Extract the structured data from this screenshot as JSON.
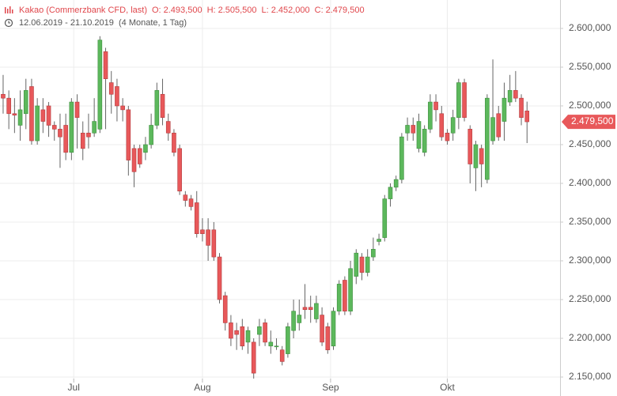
{
  "chart_data": {
    "type": "candlestick",
    "title": "Kakao (Commerzbank CFD, last)",
    "ohlc_header": [
      {
        "key": "O:",
        "value": "2.493,500"
      },
      {
        "key": "H:",
        "value": "2.505,500"
      },
      {
        "key": "L:",
        "value": "2.452,000"
      },
      {
        "key": "C:",
        "value": "2.479,500"
      }
    ],
    "date_range": "12.06.2019 - 21.10.2019",
    "period": "(4 Monate, 1 Tag)",
    "up_color": "#5cb85c",
    "down_color": "#e8585a",
    "open": [
      2.515,
      2.51,
      2.49,
      2.475,
      2.49,
      2.525,
      2.455,
      2.495,
      2.5,
      2.475,
      2.47,
      2.475,
      2.44,
      2.505,
      2.465,
      2.465,
      2.465,
      2.47,
      2.57,
      2.53,
      2.525,
      2.5,
      2.495,
      2.445,
      2.445,
      2.44,
      2.45,
      2.475,
      2.515,
      2.48,
      2.465,
      2.445,
      2.385,
      2.38,
      2.375,
      2.34,
      2.34,
      2.34,
      2.305,
      2.255,
      2.22,
      2.21,
      2.215,
      2.195,
      2.195,
      2.205,
      2.22,
      2.19,
      2.19,
      2.185,
      2.18,
      2.21,
      2.22,
      2.24,
      2.24,
      2.225,
      2.23,
      2.215,
      2.19,
      2.235,
      2.275,
      2.235,
      2.28,
      2.305,
      2.285,
      2.305,
      2.325,
      2.33,
      2.38,
      2.395,
      2.405,
      2.465,
      2.475,
      2.445,
      2.44,
      2.47,
      2.505,
      2.49,
      2.465,
      2.465,
      2.485,
      2.53,
      2.47,
      2.42,
      2.445,
      2.405,
      2.455,
      2.49,
      2.48,
      2.505,
      2.52,
      2.51,
      2.4935
    ],
    "high": [
      2.54,
      2.52,
      2.51,
      2.52,
      2.535,
      2.535,
      2.51,
      2.51,
      2.505,
      2.48,
      2.49,
      2.49,
      2.51,
      2.515,
      2.48,
      2.49,
      2.51,
      2.59,
      2.575,
      2.545,
      2.535,
      2.51,
      2.5,
      2.45,
      2.45,
      2.46,
      2.49,
      2.53,
      2.535,
      2.49,
      2.47,
      2.45,
      2.39,
      2.385,
      2.39,
      2.355,
      2.355,
      2.35,
      2.31,
      2.26,
      2.23,
      2.22,
      2.225,
      2.215,
      2.2,
      2.225,
      2.225,
      2.21,
      2.2,
      2.19,
      2.22,
      2.25,
      2.25,
      2.27,
      2.255,
      2.255,
      2.24,
      2.22,
      2.24,
      2.275,
      2.28,
      2.3,
      2.315,
      2.31,
      2.315,
      2.33,
      2.335,
      2.385,
      2.4,
      2.41,
      2.465,
      2.485,
      2.485,
      2.49,
      2.475,
      2.515,
      2.515,
      2.5,
      2.47,
      2.495,
      2.535,
      2.535,
      2.475,
      2.455,
      2.45,
      2.515,
      2.56,
      2.5,
      2.53,
      2.54,
      2.545,
      2.515,
      2.5055
    ],
    "low": [
      2.49,
      2.47,
      2.465,
      2.455,
      2.47,
      2.45,
      2.45,
      2.465,
      2.46,
      2.455,
      2.42,
      2.43,
      2.43,
      2.445,
      2.43,
      2.445,
      2.46,
      2.465,
      2.47,
      2.49,
      2.48,
      2.48,
      2.41,
      2.395,
      2.42,
      2.43,
      2.445,
      2.47,
      2.475,
      2.455,
      2.435,
      2.385,
      2.37,
      2.365,
      2.33,
      2.325,
      2.3,
      2.3,
      2.245,
      2.21,
      2.19,
      2.185,
      2.185,
      2.18,
      2.148,
      2.19,
      2.19,
      2.18,
      2.185,
      2.165,
      2.175,
      2.2,
      2.21,
      2.225,
      2.22,
      2.22,
      2.19,
      2.18,
      2.185,
      2.23,
      2.23,
      2.23,
      2.27,
      2.275,
      2.28,
      2.3,
      2.32,
      2.325,
      2.37,
      2.39,
      2.4,
      2.455,
      2.455,
      2.44,
      2.435,
      2.465,
      2.48,
      2.455,
      2.45,
      2.455,
      2.47,
      2.48,
      2.4,
      2.39,
      2.395,
      2.4,
      2.45,
      2.455,
      2.455,
      2.5,
      2.505,
      2.475,
      2.452
    ],
    "close": [
      2.51,
      2.49,
      2.488,
      2.495,
      2.52,
      2.455,
      2.5,
      2.48,
      2.475,
      2.47,
      2.46,
      2.44,
      2.505,
      2.485,
      2.445,
      2.46,
      2.48,
      2.585,
      2.535,
      2.515,
      2.5,
      2.495,
      2.43,
      2.415,
      2.425,
      2.45,
      2.475,
      2.52,
      2.485,
      2.465,
      2.44,
      2.39,
      2.378,
      2.37,
      2.335,
      2.335,
      2.32,
      2.305,
      2.25,
      2.22,
      2.2,
      2.205,
      2.19,
      2.21,
      2.155,
      2.215,
      2.195,
      2.195,
      2.19,
      2.17,
      2.215,
      2.235,
      2.23,
      2.237,
      2.237,
      2.245,
      2.195,
      2.185,
      2.235,
      2.27,
      2.235,
      2.29,
      2.31,
      2.285,
      2.305,
      2.315,
      2.328,
      2.38,
      2.395,
      2.405,
      2.46,
      2.475,
      2.465,
      2.48,
      2.47,
      2.505,
      2.495,
      2.46,
      2.455,
      2.485,
      2.53,
      2.485,
      2.425,
      2.45,
      2.425,
      2.51,
      2.485,
      2.46,
      2.51,
      2.52,
      2.51,
      2.485,
      2.4795
    ],
    "last_price": {
      "value": 2.4795,
      "label": "2.479,500"
    },
    "xlim": [
      -0.55,
      97.8
    ],
    "xticks": [
      {
        "value": 12.4,
        "label": "Jul"
      },
      {
        "value": 35,
        "label": "Aug"
      },
      {
        "value": 57.5,
        "label": "Sep"
      },
      {
        "value": 78,
        "label": "Okt"
      }
    ],
    "ylim": [
      2.1255,
      2.6367
    ],
    "yticks": [
      {
        "value": 2.15,
        "label": "2.150,000"
      },
      {
        "value": 2.2,
        "label": "2.200,000"
      },
      {
        "value": 2.25,
        "label": "2.250,000"
      },
      {
        "value": 2.3,
        "label": "2.300,000"
      },
      {
        "value": 2.35,
        "label": "2.350,000"
      },
      {
        "value": 2.4,
        "label": "2.400,000"
      },
      {
        "value": 2.45,
        "label": "2.450,000"
      },
      {
        "value": 2.5,
        "label": "2.500,000"
      },
      {
        "value": 2.55,
        "label": "2.550,000"
      },
      {
        "value": 2.6,
        "label": "2.600,000"
      }
    ],
    "grid": true
  }
}
